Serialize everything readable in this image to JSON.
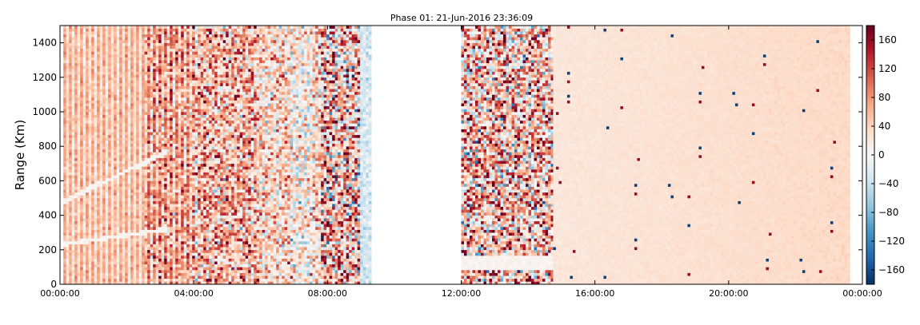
{
  "chart_data": {
    "type": "heatmap",
    "title": "Phase 01: 21-Jun-2016 23:36:09",
    "xlabel": "",
    "ylabel": "Range (Km)",
    "x_axis": {
      "kind": "time",
      "range": [
        "00:00:00",
        "24:00:00"
      ],
      "ticks": [
        "00:00:00",
        "04:00:00",
        "08:00:00",
        "12:00:00",
        "16:00:00",
        "20:00:00",
        "00:00:00"
      ]
    },
    "y_axis": {
      "range": [
        0,
        1500
      ],
      "ticks": [
        "0",
        "200",
        "400",
        "600",
        "800",
        "1000",
        "1200",
        "1400"
      ]
    },
    "colorbar": {
      "colormap": "RdBu_r",
      "range": [
        -180,
        180
      ],
      "ticks": [
        "−160",
        "−120",
        "−80",
        "−40",
        "0",
        "40",
        "80",
        "120",
        "160"
      ]
    },
    "data_segments": [
      {
        "start_hour": 0.1,
        "end_hour": 9.35,
        "character": "noisy vertical striping, values roughly -160 to 180"
      },
      {
        "start_hour": 12.0,
        "end_hour": 14.75,
        "character": "strong noise, values roughly -180 to 180"
      },
      {
        "start_hour": 14.75,
        "end_hour": 23.65,
        "character": "mostly uniform near 20-40 with isolated outliers"
      }
    ],
    "grid": false,
    "legend": "none"
  }
}
